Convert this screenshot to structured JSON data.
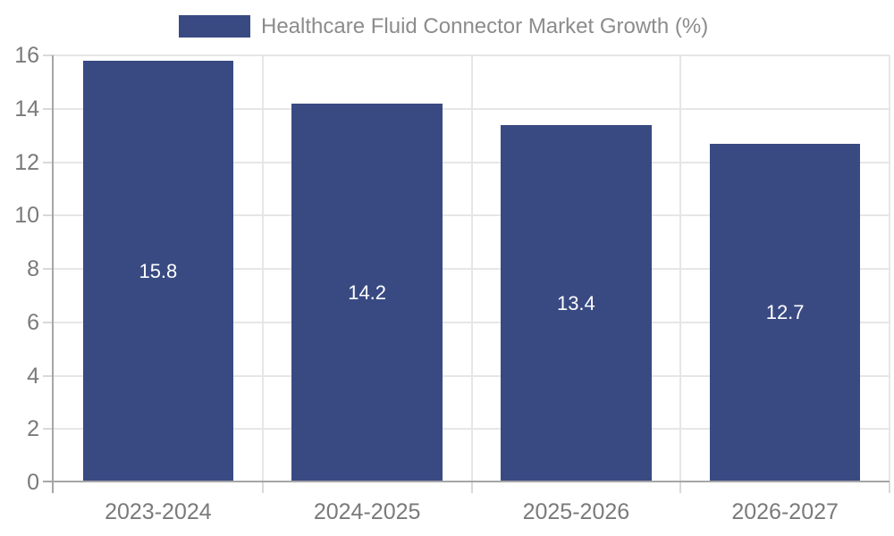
{
  "legend": {
    "label": "Healthcare Fluid Connector Market Growth (%)",
    "swatch_color": "#394A83",
    "text_color": "#8c8c8c"
  },
  "chart_data": {
    "type": "bar",
    "title": "Healthcare Fluid Connector Market Growth (%)",
    "categories": [
      "2023-2024",
      "2024-2025",
      "2025-2026",
      "2026-2027"
    ],
    "values": [
      15.8,
      14.2,
      13.4,
      12.7
    ],
    "value_labels": [
      "15.8",
      "14.2",
      "13.4",
      "12.7"
    ],
    "value_label_position": "inside-center",
    "xlabel": "",
    "ylabel": "",
    "ylim": [
      0,
      16
    ],
    "yticks": [
      0,
      2,
      4,
      6,
      8,
      10,
      12,
      14,
      16
    ],
    "grid": true,
    "legend_position": "top",
    "colors": {
      "bar": "#394A83",
      "value_label": "#ffffff",
      "gridline": "#e6e6e6",
      "tick_mark": "#d9d9d9",
      "axis_line": "#a6a6a6",
      "tick_label": "#7a7a7a",
      "background": "#ffffff"
    }
  }
}
